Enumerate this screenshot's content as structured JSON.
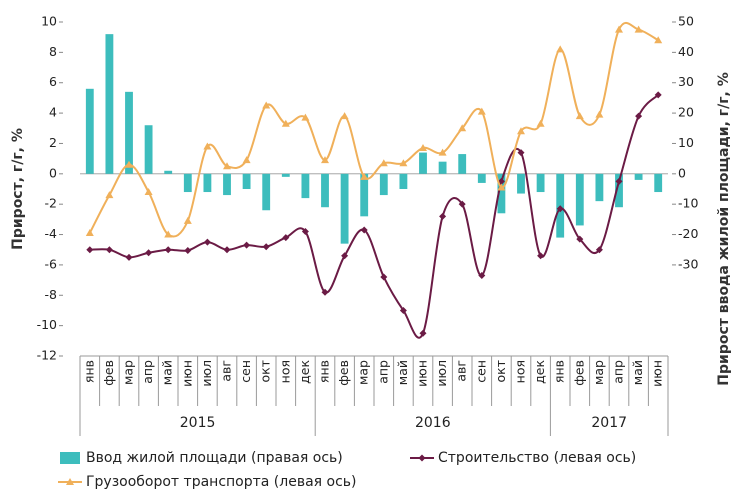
{
  "chart_data": {
    "type": "combo",
    "category_groups": [
      {
        "name": "2015",
        "categories": [
          "янв",
          "фев",
          "мар",
          "апр",
          "май",
          "июн",
          "июл",
          "авг",
          "сен",
          "окт",
          "ноя",
          "дек"
        ]
      },
      {
        "name": "2016",
        "categories": [
          "янв",
          "фев",
          "мар",
          "апр",
          "май",
          "июн",
          "июл",
          "авг",
          "сен",
          "окт",
          "ноя",
          "дек"
        ]
      },
      {
        "name": "2017",
        "categories": [
          "янв",
          "фев",
          "мар",
          "апр",
          "май",
          "июн"
        ]
      }
    ],
    "y_label": "Прирост, г/г, %",
    "y2_label": "Прирост ввода жилой площади, г/г, %",
    "ylim": [
      -12,
      10
    ],
    "yticks": [
      10,
      8,
      6,
      4,
      2,
      0,
      -2,
      -4,
      -6,
      -8,
      -10,
      -12
    ],
    "y2lim": [
      -60,
      50
    ],
    "y2ticks": [
      50,
      40,
      30,
      20,
      10,
      0,
      -10,
      -20,
      -30
    ],
    "series": [
      {
        "name": "Ввод жилой площади (правая ось)",
        "type": "bar",
        "axis": "y2",
        "color": "#3dbdbd",
        "values": [
          28,
          46,
          27,
          16,
          1,
          -6,
          -6,
          -7,
          -5,
          -12,
          -1,
          -8,
          -11,
          -23,
          -14,
          -7,
          -5,
          7,
          4,
          6.5,
          -3,
          -13,
          -6.5,
          -6,
          -21,
          -17,
          -9,
          -11,
          -2,
          -6
        ]
      },
      {
        "name": "Строительство (левая ось)",
        "type": "line",
        "axis": "y",
        "color": "#6b1b45",
        "marker": "diamond",
        "values": [
          -5.0,
          -5.0,
          -5.5,
          -5.2,
          -5.0,
          -5.05,
          -4.5,
          -5.0,
          -4.7,
          -4.8,
          -4.2,
          -3.8,
          -7.8,
          -5.4,
          -3.7,
          -6.8,
          -9.0,
          -10.5,
          -2.8,
          -2.0,
          -6.7,
          -0.5,
          1.4,
          -5.4,
          -2.3,
          -4.3,
          -5.0,
          -0.5,
          3.8,
          5.2
        ]
      },
      {
        "name": "Грузооборот транспорта (левая ось)",
        "type": "line",
        "axis": "y",
        "color": "#f0b05a",
        "marker": "triangle",
        "values": [
          -3.9,
          -1.4,
          0.6,
          -1.2,
          -4.0,
          -3.1,
          1.8,
          0.5,
          0.9,
          4.5,
          3.3,
          3.7,
          0.9,
          3.8,
          -0.2,
          0.7,
          0.7,
          1.7,
          1.4,
          3.0,
          4.1,
          -0.9,
          2.8,
          3.3,
          8.2,
          3.8,
          3.9,
          9.5,
          9.5,
          8.8
        ]
      }
    ]
  }
}
